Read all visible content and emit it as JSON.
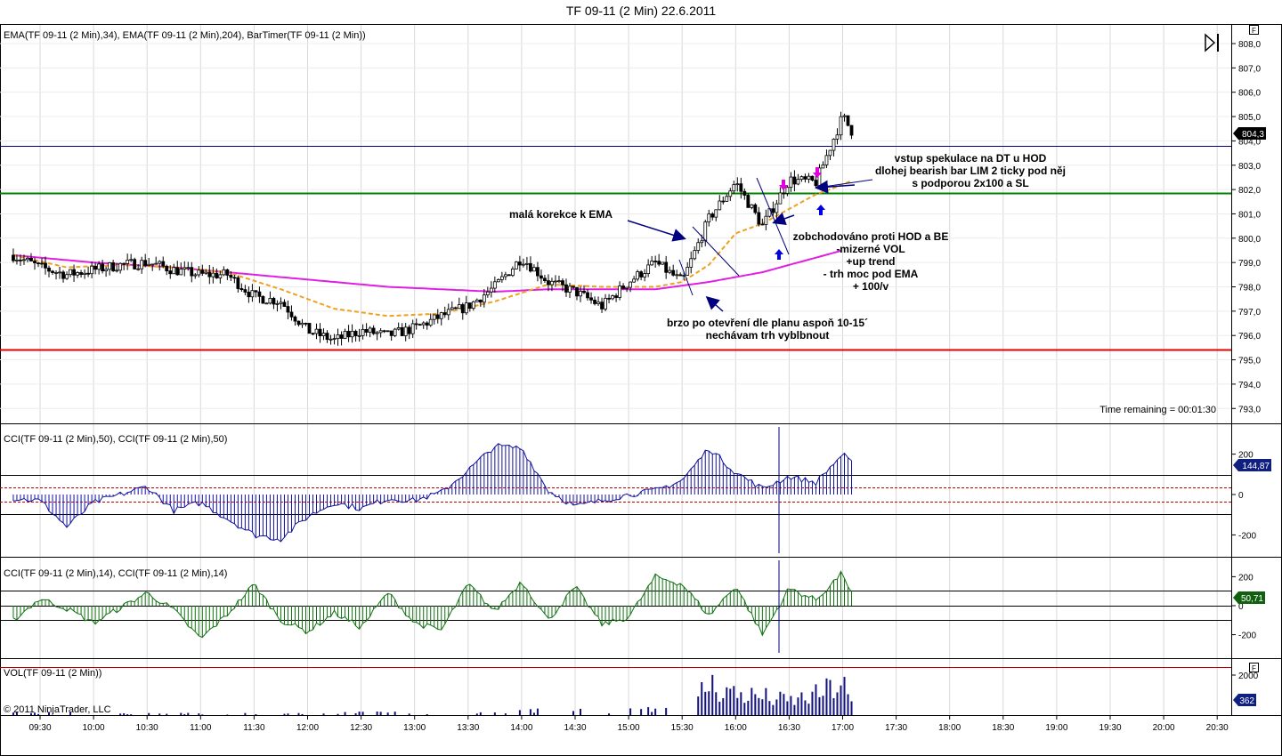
{
  "window": {
    "title": "TF 09-11 (2 Min)  22.6.2011",
    "copyright": "© 2011 NinjaTrader, LLC",
    "flag_label": "F"
  },
  "panels": {
    "price": {
      "label": "EMA(TF 09-11 (2 Min),34), EMA(TF 09-11 (2 Min),204), BarTimer(TF 09-11 (2 Min))",
      "timer": "Time remaining = 00:01:30",
      "current": "804,3",
      "y_ticks": [
        "808,0",
        "807,0",
        "806,0",
        "805,0",
        "804,0",
        "803,0",
        "802,0",
        "801,0",
        "800,0",
        "799,0",
        "798,0",
        "797,0",
        "796,0",
        "795,0",
        "794,0",
        "793,0"
      ]
    },
    "cci50": {
      "label": "CCI(TF 09-11 (2 Min),50), CCI(TF 09-11 (2 Min),50)",
      "current": "144,87",
      "y_ticks": [
        "200",
        "0",
        "-200"
      ]
    },
    "cci14": {
      "label": "CCI(TF 09-11 (2 Min),14), CCI(TF 09-11 (2 Min),14)",
      "current": "50,71",
      "y_ticks": [
        "200",
        "0",
        "-200"
      ]
    },
    "vol": {
      "label": "VOL(TF 09-11 (2 Min))",
      "current": "362",
      "y_ticks": [
        "2000"
      ]
    }
  },
  "x_ticks": [
    "09:30",
    "10:00",
    "10:30",
    "11:00",
    "11:30",
    "12:00",
    "12:30",
    "13:00",
    "13:30",
    "14:00",
    "14:30",
    "15:00",
    "15:30",
    "16:00",
    "16:30",
    "17:00",
    "17:30",
    "18:00",
    "18:30",
    "19:00",
    "19:30",
    "20:00",
    "20:30"
  ],
  "annotations": {
    "vstup": [
      "vstup spekulace na DT u HOD",
      "dlohej bearish bar LIM 2 ticky pod něj",
      "s podporou 2x100 a SL"
    ],
    "mala": [
      "malá korekce k EMA"
    ],
    "zobch": [
      "zobchodováno proti HOD a BE",
      "-mizerné VOL",
      "+up trend",
      "- trh moc pod EMA",
      "+ 100/v"
    ],
    "brzo": [
      "brzo po otevření dle planu aspoň 10-15´",
      "nechávam trh vyblbnout"
    ]
  },
  "colors": {
    "ema34": "#f0a020",
    "ema204": "#e020e0",
    "candle": "#000000",
    "cci50": "#1010a0",
    "cci14": "#107010",
    "volume": "#101080",
    "resistance_line": "#000080",
    "support_line_green": "#008000",
    "support_line_red": "#e00000"
  },
  "chart_data": {
    "type": "line",
    "instrument": "TF 09-11 (2 Min)",
    "date": "22.6.2011",
    "price_ylim": [
      792.5,
      808.4
    ],
    "last_price": 804.3,
    "horizontal_levels": [
      803.8,
      801.8,
      795.4
    ],
    "anchors": {
      "close": [
        [
          9.25,
          799.3
        ],
        [
          9.5,
          798.8
        ],
        [
          9.75,
          798.5
        ],
        [
          10.0,
          798.7
        ],
        [
          10.25,
          798.9
        ],
        [
          10.5,
          799.0
        ],
        [
          10.75,
          798.7
        ],
        [
          11.0,
          798.5
        ],
        [
          11.25,
          798.5
        ],
        [
          11.5,
          797.6
        ],
        [
          11.75,
          797.4
        ],
        [
          12.0,
          796.2
        ],
        [
          12.25,
          795.8
        ],
        [
          12.5,
          796.2
        ],
        [
          12.75,
          796.0
        ],
        [
          13.0,
          796.3
        ],
        [
          13.25,
          796.8
        ],
        [
          13.5,
          797.2
        ],
        [
          13.75,
          798.0
        ],
        [
          14.0,
          799.2
        ],
        [
          14.25,
          798.2
        ],
        [
          14.5,
          797.8
        ],
        [
          14.75,
          797.2
        ],
        [
          15.0,
          798.2
        ],
        [
          15.25,
          799.0
        ],
        [
          15.5,
          798.2
        ],
        [
          15.75,
          800.8
        ],
        [
          16.0,
          802.3
        ],
        [
          16.25,
          800.5
        ],
        [
          16.5,
          802.4
        ],
        [
          16.75,
          802.3
        ],
        [
          17.0,
          805.0
        ],
        [
          17.1,
          804.3
        ]
      ],
      "ema34": [
        [
          9.25,
          799.3
        ],
        [
          9.75,
          798.8
        ],
        [
          10.25,
          798.9
        ],
        [
          10.75,
          798.8
        ],
        [
          11.25,
          798.6
        ],
        [
          11.75,
          797.9
        ],
        [
          12.25,
          797.1
        ],
        [
          12.75,
          796.8
        ],
        [
          13.25,
          796.9
        ],
        [
          13.75,
          797.4
        ],
        [
          14.25,
          798.1
        ],
        [
          14.75,
          798.0
        ],
        [
          15.25,
          798.0
        ],
        [
          15.5,
          798.2
        ],
        [
          15.75,
          798.9
        ],
        [
          16.0,
          800.2
        ],
        [
          16.25,
          800.6
        ],
        [
          16.5,
          801.2
        ],
        [
          16.75,
          801.8
        ],
        [
          17.0,
          802.2
        ],
        [
          17.1,
          802.4
        ]
      ],
      "ema204": [
        [
          9.25,
          799.3
        ],
        [
          10.0,
          799.0
        ],
        [
          10.75,
          798.8
        ],
        [
          11.25,
          798.6
        ],
        [
          11.75,
          798.4
        ],
        [
          12.25,
          798.2
        ],
        [
          12.75,
          798.0
        ],
        [
          13.25,
          797.9
        ],
        [
          13.75,
          797.8
        ],
        [
          14.25,
          797.9
        ],
        [
          14.75,
          797.9
        ],
        [
          15.25,
          797.9
        ],
        [
          15.75,
          798.2
        ],
        [
          16.25,
          798.6
        ],
        [
          16.5,
          798.9
        ],
        [
          16.75,
          799.2
        ],
        [
          17.0,
          799.5
        ]
      ],
      "cci50": [
        [
          9.25,
          -20
        ],
        [
          9.5,
          -30
        ],
        [
          9.75,
          -160
        ],
        [
          10.0,
          -40
        ],
        [
          10.5,
          40
        ],
        [
          10.75,
          -80
        ],
        [
          11.0,
          -40
        ],
        [
          11.5,
          -200
        ],
        [
          11.75,
          -220
        ],
        [
          12.0,
          -110
        ],
        [
          12.25,
          -40
        ],
        [
          12.5,
          -70
        ],
        [
          12.75,
          -20
        ],
        [
          13.0,
          -30
        ],
        [
          13.25,
          10
        ],
        [
          13.5,
          120
        ],
        [
          13.75,
          240
        ],
        [
          14.0,
          230
        ],
        [
          14.25,
          20
        ],
        [
          14.5,
          -60
        ],
        [
          14.75,
          -30
        ],
        [
          15.0,
          0
        ],
        [
          15.25,
          20
        ],
        [
          15.5,
          70
        ],
        [
          15.75,
          230
        ],
        [
          16.0,
          110
        ],
        [
          16.25,
          30
        ],
        [
          16.5,
          90
        ],
        [
          16.75,
          60
        ],
        [
          17.0,
          200
        ],
        [
          17.1,
          145
        ]
      ],
      "cci14": [
        [
          9.25,
          -100
        ],
        [
          9.5,
          50
        ],
        [
          9.75,
          -20
        ],
        [
          10.0,
          -120
        ],
        [
          10.5,
          90
        ],
        [
          10.75,
          -30
        ],
        [
          11.0,
          -230
        ],
        [
          11.25,
          -60
        ],
        [
          11.5,
          150
        ],
        [
          11.75,
          -100
        ],
        [
          12.0,
          -180
        ],
        [
          12.25,
          -50
        ],
        [
          12.5,
          -150
        ],
        [
          12.75,
          90
        ],
        [
          13.0,
          -120
        ],
        [
          13.25,
          -170
        ],
        [
          13.5,
          150
        ],
        [
          13.75,
          -40
        ],
        [
          14.0,
          170
        ],
        [
          14.25,
          -100
        ],
        [
          14.5,
          130
        ],
        [
          14.75,
          -130
        ],
        [
          15.0,
          -80
        ],
        [
          15.25,
          200
        ],
        [
          15.5,
          150
        ],
        [
          15.75,
          -70
        ],
        [
          16.0,
          140
        ],
        [
          16.25,
          -200
        ],
        [
          16.5,
          120
        ],
        [
          16.75,
          40
        ],
        [
          17.0,
          230
        ],
        [
          17.1,
          50
        ]
      ],
      "volume": [
        [
          9.25,
          150
        ],
        [
          9.75,
          150
        ],
        [
          10.25,
          100
        ],
        [
          10.75,
          100
        ],
        [
          11.25,
          80
        ],
        [
          11.75,
          100
        ],
        [
          12.25,
          150
        ],
        [
          12.75,
          150
        ],
        [
          13.25,
          120
        ],
        [
          13.75,
          200
        ],
        [
          14.25,
          300
        ],
        [
          14.75,
          250
        ],
        [
          15.25,
          350
        ],
        [
          15.5,
          500
        ],
        [
          15.75,
          2000
        ],
        [
          16.0,
          1400
        ],
        [
          16.25,
          1200
        ],
        [
          16.5,
          900
        ],
        [
          16.75,
          1300
        ],
        [
          17.0,
          2100
        ],
        [
          17.1,
          362
        ]
      ]
    }
  }
}
